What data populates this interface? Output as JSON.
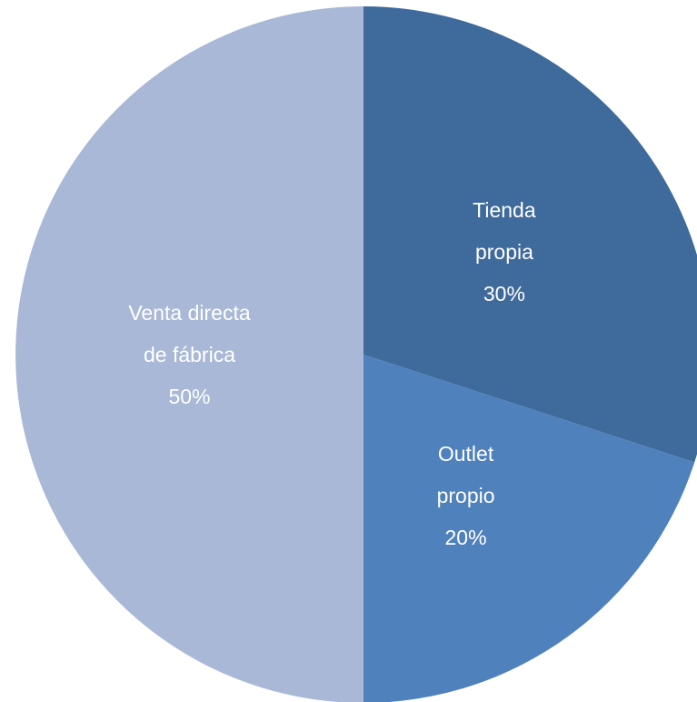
{
  "chart_data": {
    "type": "pie",
    "categories": [
      "Tienda propia",
      "Outlet propio",
      "Venta directa de fábrica"
    ],
    "values": [
      30,
      20,
      50
    ],
    "value_labels": [
      "30%",
      "20%",
      "50%"
    ],
    "colors": [
      "#3f6a9c",
      "#4f81bd",
      "#a9b8d6"
    ]
  }
}
